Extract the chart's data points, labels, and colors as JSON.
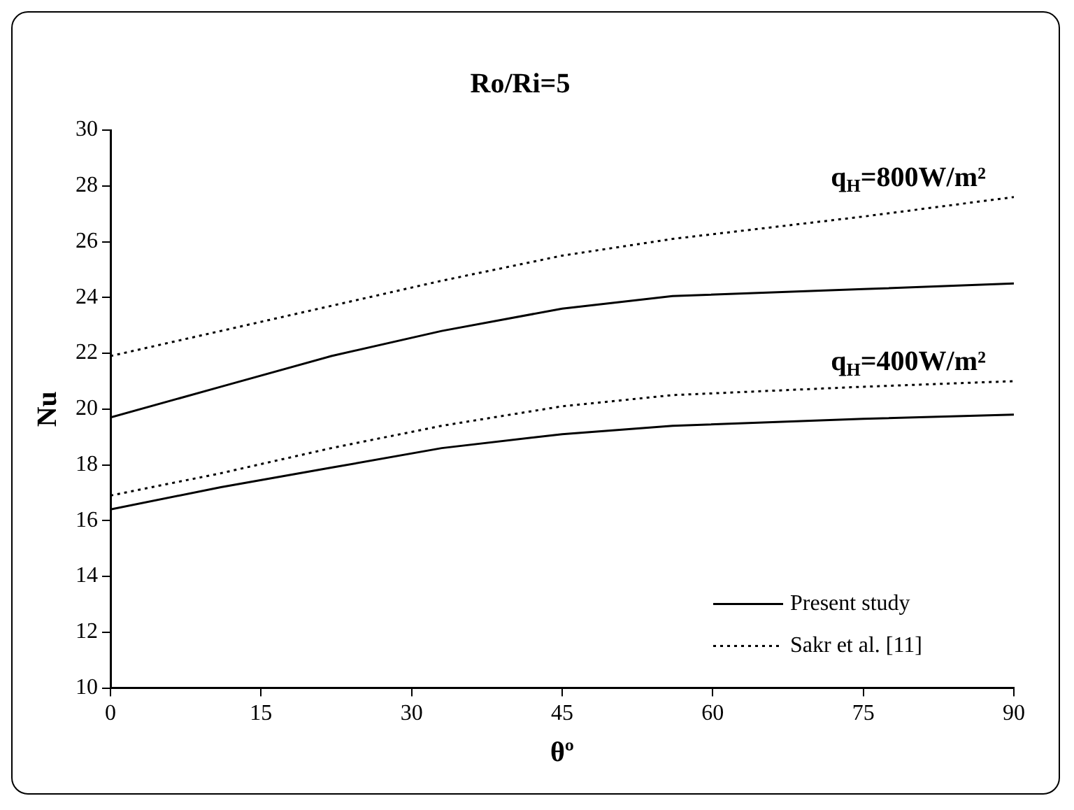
{
  "chart_data": {
    "type": "line",
    "title": "Ro/Ri=5",
    "xlabel": "θº",
    "ylabel": "Nu",
    "xlim": [
      0,
      90
    ],
    "xticks": [
      0,
      15,
      30,
      45,
      60,
      75,
      90
    ],
    "ylim": [
      10,
      30
    ],
    "yticks": [
      10,
      12,
      14,
      16,
      18,
      20,
      22,
      24,
      26,
      28,
      30
    ],
    "grid": false,
    "legend": "bottom right",
    "marker": "none",
    "x": [
      0,
      11,
      22,
      33,
      45,
      56,
      75,
      90
    ],
    "series": [
      {
        "name": "Present study",
        "color": "#000000",
        "line_style": "solid",
        "values": [
          19.7,
          20.8,
          21.9,
          22.8,
          23.6,
          24.05,
          24.3,
          24.5
        ]
      },
      {
        "name": "Sakr et al. [11]",
        "color": "#000000",
        "line_style": "dotted",
        "values": [
          21.9,
          22.8,
          23.7,
          24.6,
          25.5,
          26.1,
          26.9,
          27.6
        ]
      },
      {
        "color": "#000000",
        "line_style": "solid",
        "values": [
          16.4,
          17.2,
          17.9,
          18.6,
          19.1,
          19.4,
          19.65,
          19.8
        ]
      },
      {
        "color": "#000000",
        "line_style": "dotted",
        "values": [
          16.9,
          17.7,
          18.6,
          19.4,
          20.1,
          20.5,
          20.8,
          21.0
        ]
      }
    ],
    "annotations": [
      "q$_{H}$=800W/m²",
      "q$_{H}$=400W/m²"
    ]
  }
}
